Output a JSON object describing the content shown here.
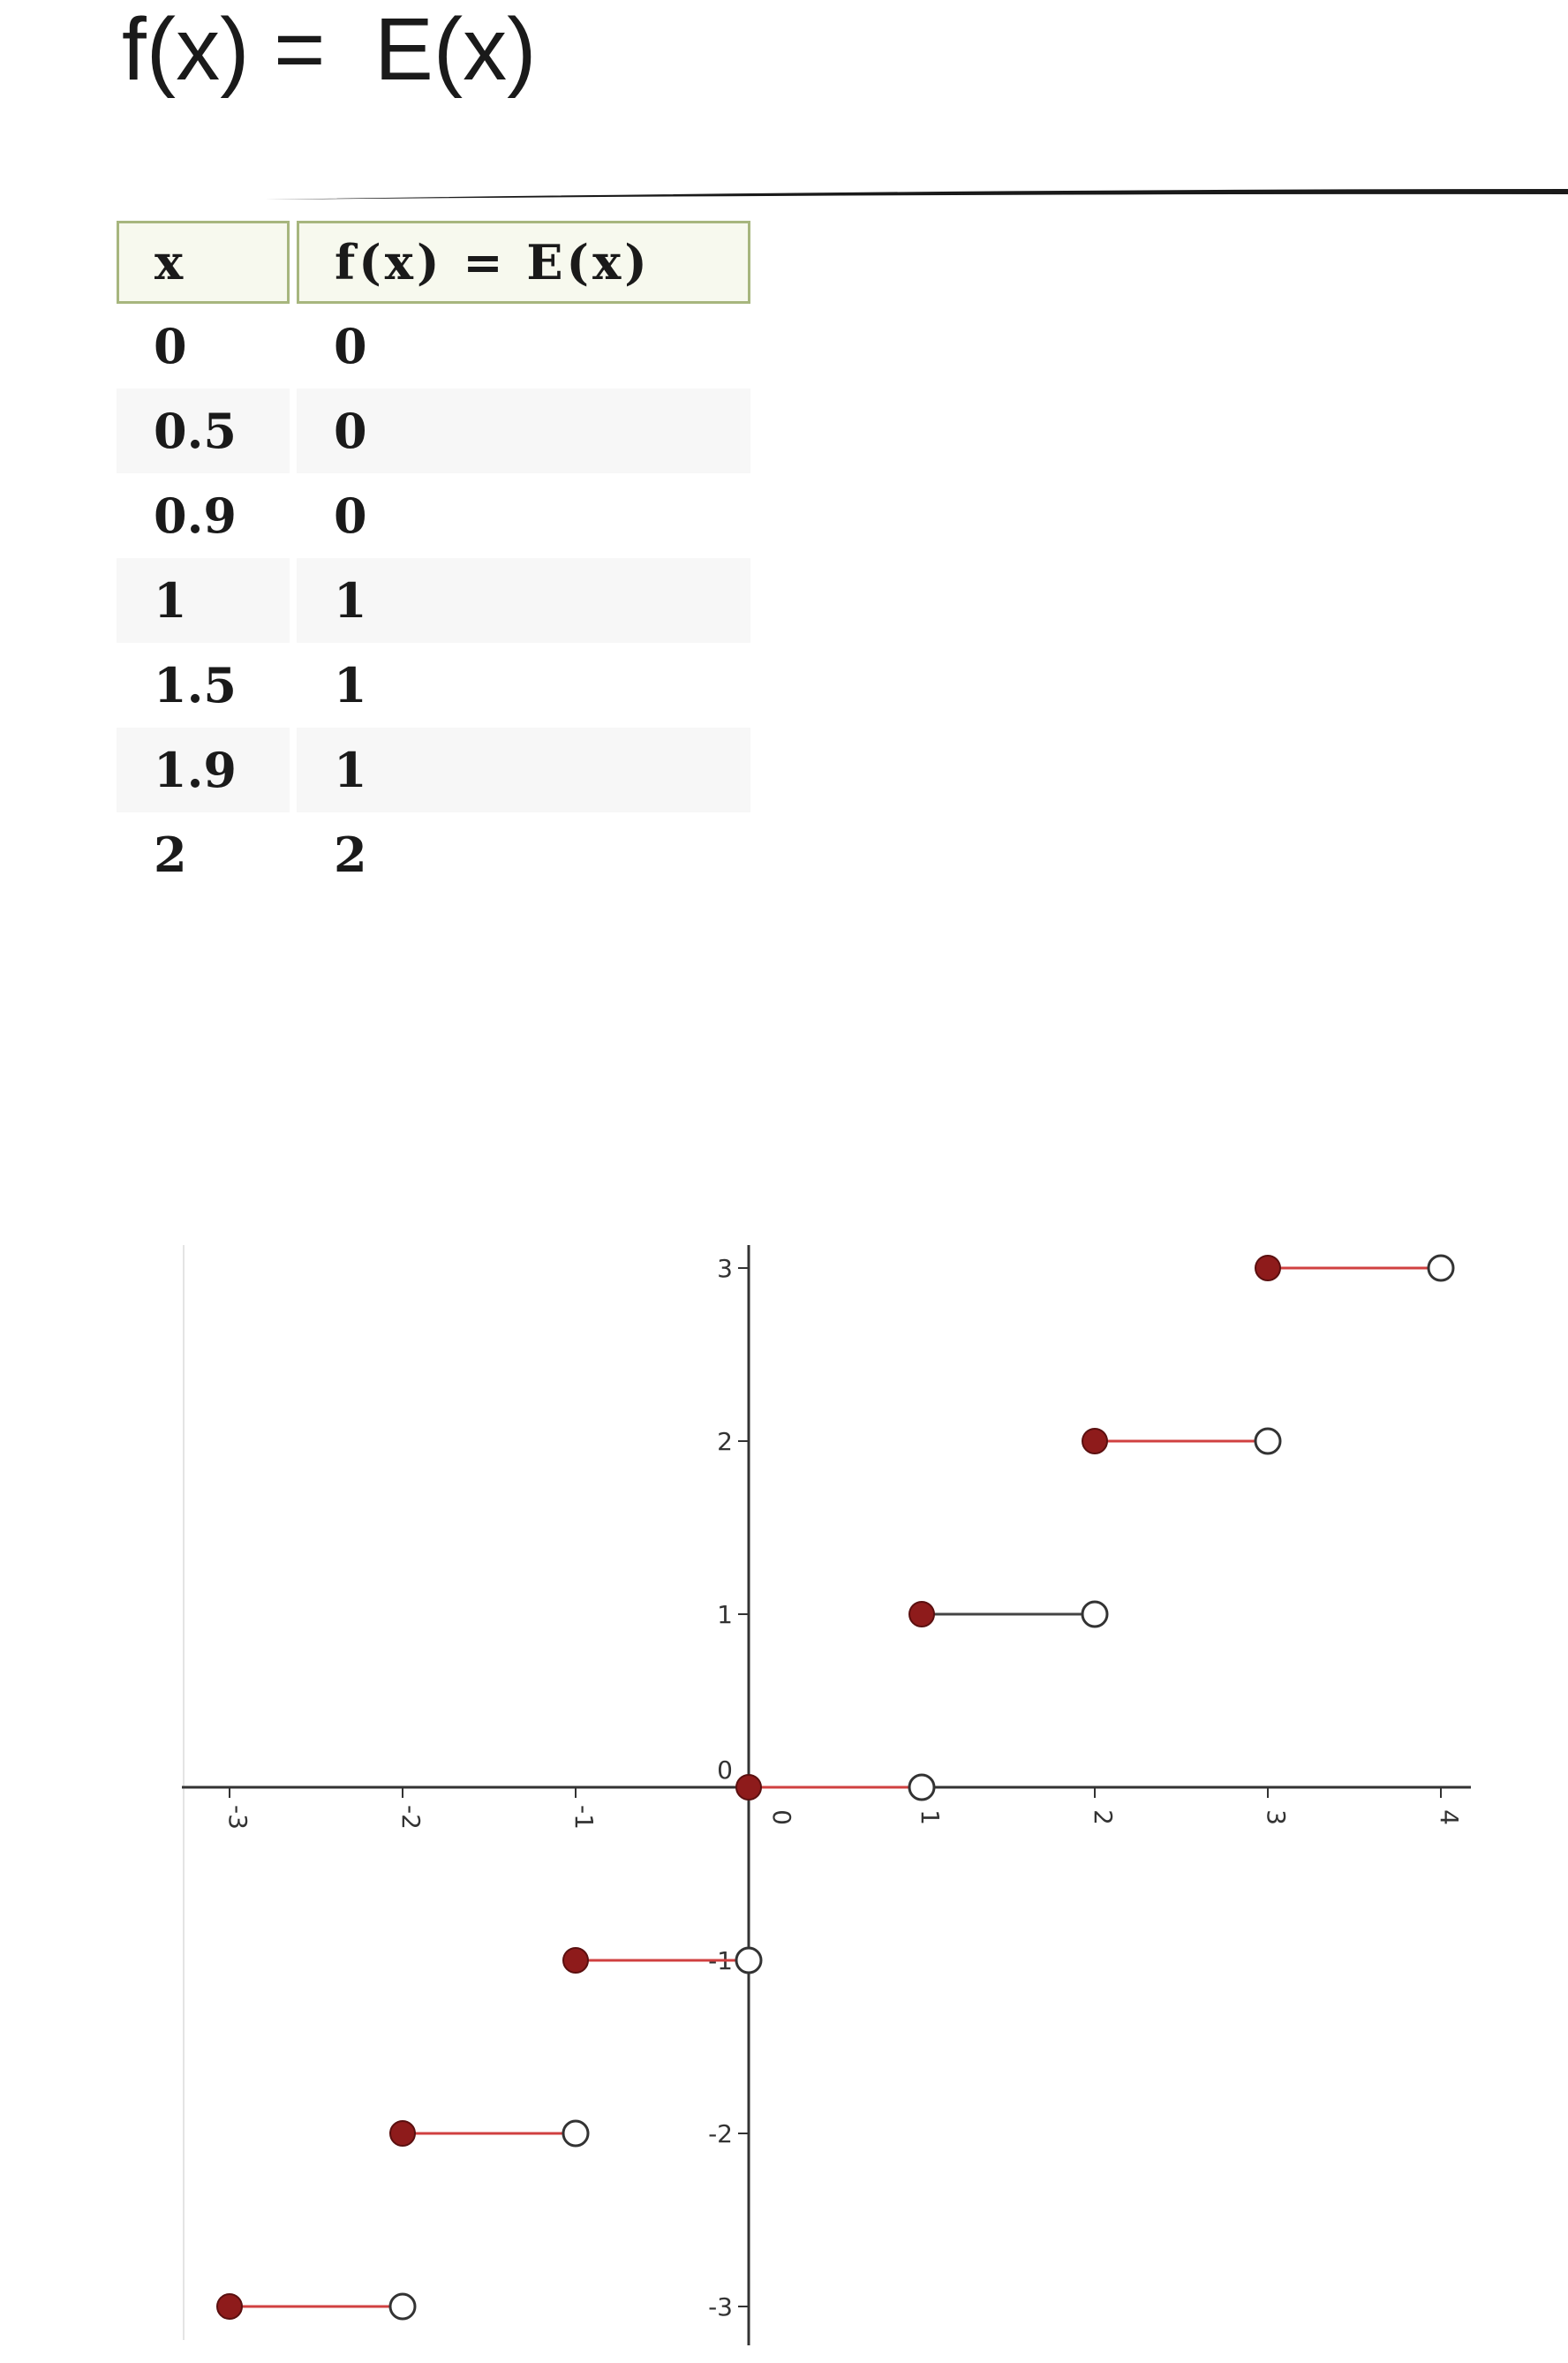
{
  "title": "f(x) =  E(x)",
  "table": {
    "headers": [
      "x",
      "f(x) = E(x)"
    ],
    "rows": [
      [
        "0",
        "0"
      ],
      [
        "0.5",
        "0"
      ],
      [
        "0.9",
        "0"
      ],
      [
        "1",
        "1"
      ],
      [
        "1.5",
        "1"
      ],
      [
        "1.9",
        "1"
      ],
      [
        "2",
        "2"
      ]
    ]
  },
  "chart_data": {
    "type": "line",
    "title": "",
    "xlabel": "",
    "ylabel": "",
    "xlim": [
      -3,
      4
    ],
    "ylim": [
      -3,
      3
    ],
    "x_ticks": [
      "-3",
      "-2",
      "-1",
      "0",
      "1",
      "2",
      "3",
      "4"
    ],
    "y_ticks": [
      "-3",
      "-2",
      "-1",
      "0",
      "1",
      "2",
      "3"
    ],
    "grid": false,
    "closed_endpoint_color": "#8e1b1b",
    "segment_color": "#d04040",
    "segments": [
      {
        "x_start": -3,
        "x_end": -2,
        "y": -3,
        "start": "closed",
        "end": "open",
        "color": "#d04040"
      },
      {
        "x_start": -2,
        "x_end": -1,
        "y": -2,
        "start": "closed",
        "end": "open",
        "color": "#d04040"
      },
      {
        "x_start": -1,
        "x_end": 0,
        "y": -1,
        "start": "closed",
        "end": "open",
        "color": "#d04040"
      },
      {
        "x_start": 0,
        "x_end": 1,
        "y": 0,
        "start": "closed",
        "end": "open",
        "color": "#d04040"
      },
      {
        "x_start": 1,
        "x_end": 2,
        "y": 1,
        "start": "closed",
        "end": "open",
        "color": "#444444"
      },
      {
        "x_start": 2,
        "x_end": 3,
        "y": 2,
        "start": "closed",
        "end": "open",
        "color": "#d04040"
      },
      {
        "x_start": 3,
        "x_end": 4,
        "y": 3,
        "start": "closed",
        "end": "open",
        "color": "#d04040"
      }
    ]
  }
}
